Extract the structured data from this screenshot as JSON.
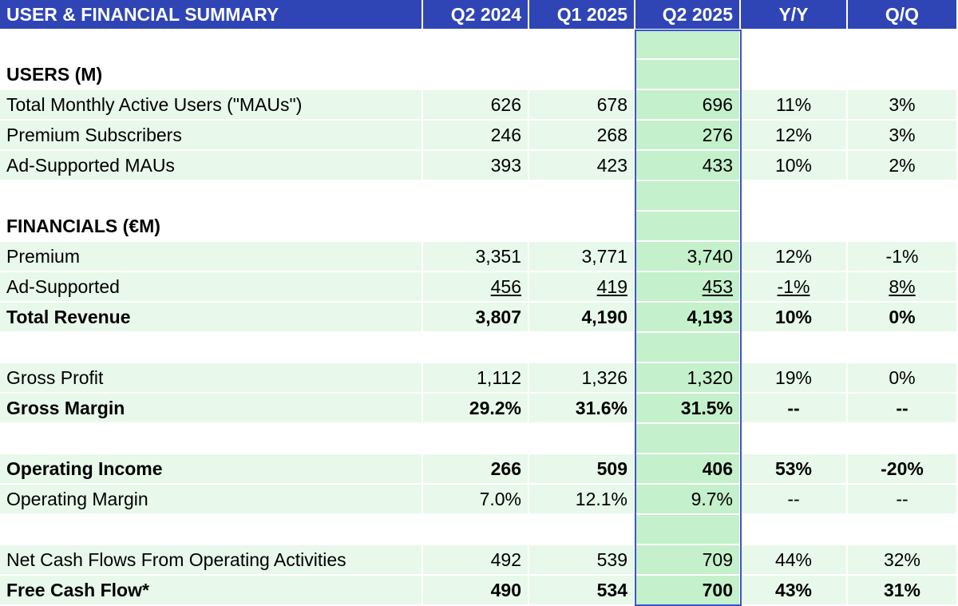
{
  "header": {
    "title": "USER & FINANCIAL SUMMARY",
    "columns": [
      "Q2 2024",
      "Q1 2025",
      "Q2 2025",
      "Y/Y",
      "Q/Q"
    ]
  },
  "highlight_color": "#c4f0cc",
  "header_color": "#2f45b6",
  "rows": [
    {
      "type": "blank"
    },
    {
      "type": "section",
      "label": "USERS (M)"
    },
    {
      "type": "data",
      "label": "Total Monthly Active Users (\"MAUs\")",
      "values": [
        "626",
        "678",
        "696",
        "11%",
        "3%"
      ]
    },
    {
      "type": "data",
      "label": "Premium Subscribers",
      "values": [
        "246",
        "268",
        "276",
        "12%",
        "3%"
      ]
    },
    {
      "type": "data",
      "label": "Ad-Supported MAUs",
      "values": [
        "393",
        "423",
        "433",
        "10%",
        "2%"
      ]
    },
    {
      "type": "blank"
    },
    {
      "type": "section",
      "label": "FINANCIALS (€M)"
    },
    {
      "type": "data",
      "label": "Premium",
      "values": [
        "3,351",
        "3,771",
        "3,740",
        "12%",
        "-1%"
      ]
    },
    {
      "type": "data",
      "underline": true,
      "label": "Ad-Supported",
      "values": [
        "456",
        "419",
        "453",
        "-1%",
        "8%"
      ]
    },
    {
      "type": "data",
      "bold": true,
      "label": "Total Revenue",
      "values": [
        "3,807",
        "4,190",
        "4,193",
        "10%",
        "0%"
      ]
    },
    {
      "type": "blank"
    },
    {
      "type": "data",
      "label": "Gross Profit",
      "values": [
        "1,112",
        "1,326",
        "1,320",
        "19%",
        "0%"
      ]
    },
    {
      "type": "data",
      "bold": true,
      "label": "Gross Margin",
      "values": [
        "29.2%",
        "31.6%",
        "31.5%",
        "--",
        "--"
      ]
    },
    {
      "type": "blank"
    },
    {
      "type": "data",
      "bold": true,
      "label": "Operating Income",
      "values": [
        "266",
        "509",
        "406",
        "53%",
        "-20%"
      ]
    },
    {
      "type": "data",
      "label": "Operating Margin",
      "values": [
        "7.0%",
        "12.1%",
        "9.7%",
        "--",
        "--"
      ]
    },
    {
      "type": "blank"
    },
    {
      "type": "data",
      "label": "Net Cash Flows From Operating Activities",
      "values": [
        "492",
        "539",
        "709",
        "44%",
        "32%"
      ]
    },
    {
      "type": "data",
      "bold": true,
      "label": "Free Cash Flow*",
      "values": [
        "490",
        "534",
        "700",
        "43%",
        "31%"
      ]
    }
  ]
}
